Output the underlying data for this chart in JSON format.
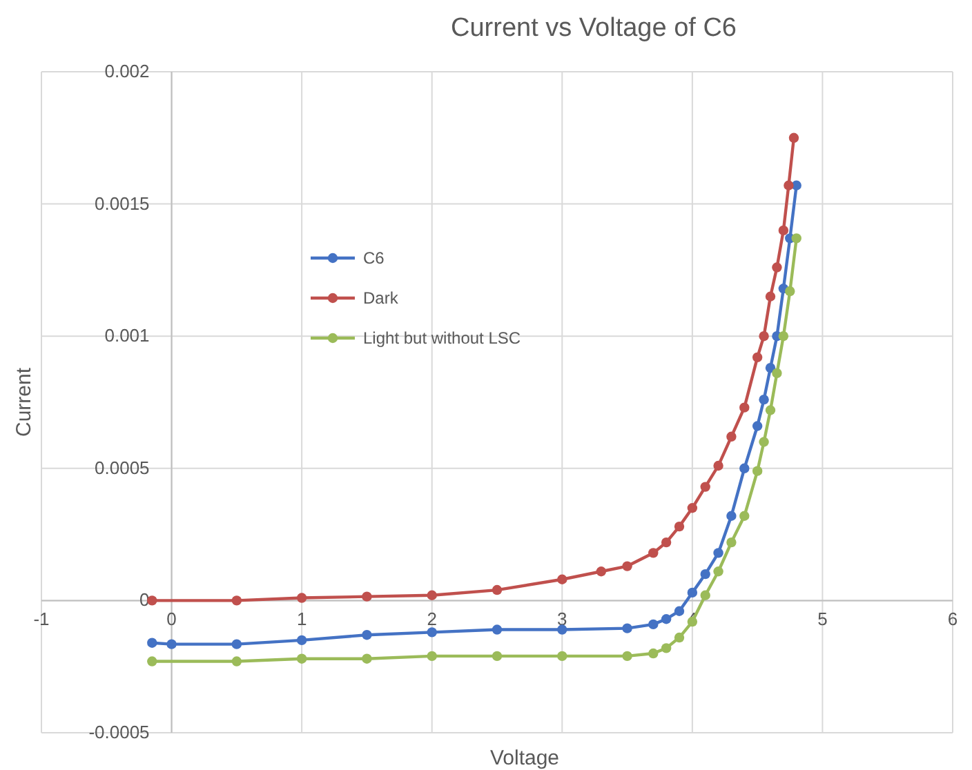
{
  "chart_data": {
    "type": "line",
    "title": "Current vs Voltage of C6",
    "xlabel": "Voltage",
    "ylabel": "Current",
    "xlim": [
      -1,
      6
    ],
    "ylim": [
      -0.0005,
      0.002
    ],
    "xticks": [
      -1,
      0,
      1,
      2,
      3,
      4,
      5,
      6
    ],
    "yticks": [
      -0.0005,
      0,
      0.0005,
      0.001,
      0.0015,
      0.002
    ],
    "grid": true,
    "legend": "left",
    "marker": "circle",
    "line_style": "solid",
    "series": [
      {
        "name": "C6",
        "color": "#4472c4",
        "x": [
          -0.15,
          0,
          0.5,
          1,
          1.5,
          2,
          2.5,
          3,
          3.5,
          3.7,
          3.8,
          3.9,
          4,
          4.1,
          4.2,
          4.3,
          4.4,
          4.5,
          4.55,
          4.6,
          4.65,
          4.7,
          4.75,
          4.8
        ],
        "values": [
          -0.00016,
          -0.000165,
          -0.000165,
          -0.00015,
          -0.00013,
          -0.00012,
          -0.00011,
          -0.00011,
          -0.000105,
          -9e-05,
          -7e-05,
          -4e-05,
          3e-05,
          0.0001,
          0.00018,
          0.00032,
          0.0005,
          0.00066,
          0.00076,
          0.00088,
          0.001,
          0.00118,
          0.00137,
          0.00157
        ]
      },
      {
        "name": "Dark",
        "color": "#c0504d",
        "x": [
          -0.15,
          0.5,
          1,
          1.5,
          2,
          2.5,
          3,
          3.3,
          3.5,
          3.7,
          3.8,
          3.9,
          4,
          4.1,
          4.2,
          4.3,
          4.4,
          4.5,
          4.55,
          4.6,
          4.65,
          4.7,
          4.74,
          4.78
        ],
        "values": [
          0,
          0,
          1e-05,
          1.5e-05,
          2e-05,
          4e-05,
          8e-05,
          0.00011,
          0.00013,
          0.00018,
          0.00022,
          0.00028,
          0.00035,
          0.00043,
          0.00051,
          0.00062,
          0.00073,
          0.00092,
          0.001,
          0.00115,
          0.00126,
          0.0014,
          0.00157,
          0.00175
        ]
      },
      {
        "name": "Light but without LSC",
        "color": "#9bbb59",
        "x": [
          -0.15,
          0.5,
          1,
          1.5,
          2,
          2.5,
          3,
          3.5,
          3.7,
          3.8,
          3.9,
          4,
          4.1,
          4.2,
          4.3,
          4.4,
          4.5,
          4.55,
          4.6,
          4.65,
          4.7,
          4.75,
          4.8
        ],
        "values": [
          -0.00023,
          -0.00023,
          -0.00022,
          -0.00022,
          -0.00021,
          -0.00021,
          -0.00021,
          -0.00021,
          -0.0002,
          -0.00018,
          -0.00014,
          -8e-05,
          2e-05,
          0.00011,
          0.00022,
          0.00032,
          0.00049,
          0.0006,
          0.00072,
          0.00086,
          0.001,
          0.00117,
          0.00137
        ]
      }
    ]
  }
}
